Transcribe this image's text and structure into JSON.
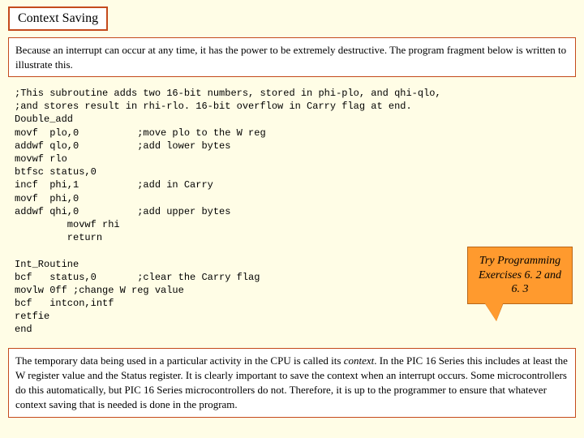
{
  "title": "Context Saving",
  "intro": "Because an interrupt can occur at any time, it has the power to be extremely destructive. The program fragment below is written to illustrate this.",
  "code": ";This subroutine adds two 16-bit numbers, stored in phi-plo, and qhi-qlo,\n;and stores result in rhi-rlo. 16-bit overflow in Carry flag at end.\nDouble_add\nmovf  plo,0          ;move plo to the W reg\naddwf qlo,0          ;add lower bytes\nmovwf rlo\nbtfsc status,0\nincf  phi,1          ;add in Carry\nmovf  phi,0\naddwf qhi,0          ;add upper bytes\n         movwf rhi\n         return\n\nInt_Routine\nbcf   status,0       ;clear the Carry flag\nmovlw 0ff ;change W reg value\nbcf   intcon,intf\nretfie\nend",
  "callout": "Try Programming Exercises 6. 2 and 6. 3",
  "footer_pre": "The temporary data being used in a particular activity in the CPU is called its ",
  "footer_italic": "context",
  "footer_post": ". In the PIC 16 Series this includes at least the W register value and the Status register. It is clearly important to save the context when an interrupt occurs. Some microcontrollers do this automatically, but PIC 16 Series microcontrollers do not. Therefore, it is up to the programmer to ensure that whatever context saving that is needed is done in the program.",
  "colors": {
    "page_bg": "#fffde6",
    "box_border": "#c44a1c",
    "callout_bg": "#ff9a2e",
    "callout_border": "#b86618"
  }
}
